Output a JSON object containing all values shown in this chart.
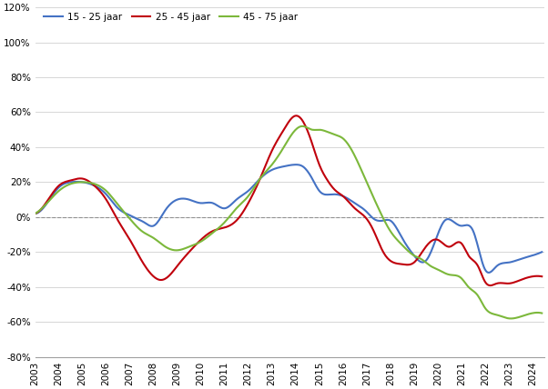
{
  "legend_labels": [
    "15 - 25 jaar",
    "25 - 45 jaar",
    "45 - 75 jaar"
  ],
  "line_colors": [
    "#4472C4",
    "#C0000C",
    "#7CB83B"
  ],
  "background_color": "#FFFFFF",
  "ylim": [
    -0.8,
    1.2
  ],
  "yticks": [
    -0.8,
    -0.6,
    -0.4,
    -0.2,
    0.0,
    0.2,
    0.4,
    0.6,
    0.8,
    1.0,
    1.2
  ],
  "xtick_years": [
    2003,
    2004,
    2005,
    2006,
    2007,
    2008,
    2009,
    2010,
    2011,
    2012,
    2013,
    2014,
    2015,
    2016,
    2017,
    2018,
    2019,
    2020,
    2021,
    2022,
    2023,
    2024
  ],
  "ctrl_x_blue": [
    2003.0,
    2003.5,
    2004.0,
    2004.5,
    2005.0,
    2005.5,
    2006.0,
    2006.5,
    2007.0,
    2007.3,
    2007.6,
    2008.0,
    2008.5,
    2009.0,
    2009.5,
    2010.0,
    2010.5,
    2011.0,
    2011.5,
    2012.0,
    2012.5,
    2013.0,
    2013.5,
    2014.0,
    2014.3,
    2014.7,
    2015.0,
    2015.5,
    2016.0,
    2016.5,
    2017.0,
    2017.3,
    2017.7,
    2018.0,
    2018.5,
    2019.0,
    2019.5,
    2020.0,
    2020.3,
    2020.7,
    2021.0,
    2021.5,
    2022.0,
    2022.5,
    2023.0,
    2023.5,
    2024.0,
    2024.4
  ],
  "ctrl_y_blue": [
    0.02,
    0.08,
    0.17,
    0.2,
    0.2,
    0.18,
    0.13,
    0.05,
    0.01,
    -0.01,
    -0.03,
    -0.05,
    0.04,
    0.1,
    0.1,
    0.08,
    0.08,
    0.05,
    0.1,
    0.15,
    0.22,
    0.27,
    0.29,
    0.3,
    0.29,
    0.22,
    0.15,
    0.13,
    0.12,
    0.08,
    0.03,
    -0.01,
    -0.02,
    -0.02,
    -0.12,
    -0.22,
    -0.25,
    -0.1,
    -0.02,
    -0.03,
    -0.05,
    -0.08,
    -0.3,
    -0.28,
    -0.26,
    -0.24,
    -0.22,
    -0.2
  ],
  "ctrl_x_red": [
    2003.0,
    2003.5,
    2004.0,
    2004.5,
    2005.0,
    2005.5,
    2006.0,
    2006.5,
    2007.0,
    2007.5,
    2008.0,
    2008.3,
    2008.7,
    2009.0,
    2009.5,
    2010.0,
    2010.5,
    2011.0,
    2011.5,
    2012.0,
    2012.5,
    2013.0,
    2013.5,
    2014.0,
    2014.3,
    2014.7,
    2015.0,
    2015.3,
    2015.7,
    2016.0,
    2016.5,
    2017.0,
    2017.3,
    2017.7,
    2018.0,
    2018.5,
    2019.0,
    2019.5,
    2020.0,
    2020.5,
    2021.0,
    2021.3,
    2021.7,
    2022.0,
    2022.5,
    2023.0,
    2023.5,
    2024.0,
    2024.4
  ],
  "ctrl_y_red": [
    0.02,
    0.09,
    0.18,
    0.21,
    0.22,
    0.18,
    0.1,
    -0.02,
    -0.13,
    -0.25,
    -0.34,
    -0.36,
    -0.33,
    -0.28,
    -0.2,
    -0.13,
    -0.08,
    -0.06,
    -0.02,
    0.08,
    0.22,
    0.38,
    0.5,
    0.58,
    0.55,
    0.42,
    0.3,
    0.22,
    0.15,
    0.12,
    0.05,
    -0.01,
    -0.08,
    -0.2,
    -0.25,
    -0.27,
    -0.26,
    -0.17,
    -0.13,
    -0.17,
    -0.15,
    -0.22,
    -0.28,
    -0.37,
    -0.38,
    -0.38,
    -0.36,
    -0.34,
    -0.34
  ],
  "ctrl_x_green": [
    2003.0,
    2003.5,
    2004.0,
    2004.5,
    2005.0,
    2005.5,
    2006.0,
    2006.5,
    2007.0,
    2007.5,
    2008.0,
    2008.5,
    2009.0,
    2009.5,
    2010.0,
    2010.5,
    2011.0,
    2011.5,
    2012.0,
    2012.5,
    2013.0,
    2013.5,
    2014.0,
    2014.3,
    2014.7,
    2015.0,
    2015.3,
    2015.7,
    2016.0,
    2016.5,
    2017.0,
    2017.5,
    2018.0,
    2018.5,
    2019.0,
    2019.3,
    2019.7,
    2020.0,
    2020.5,
    2021.0,
    2021.3,
    2021.7,
    2022.0,
    2022.5,
    2023.0,
    2023.5,
    2024.0,
    2024.4
  ],
  "ctrl_y_green": [
    0.02,
    0.08,
    0.15,
    0.19,
    0.2,
    0.19,
    0.15,
    0.07,
    -0.01,
    -0.08,
    -0.12,
    -0.17,
    -0.19,
    -0.17,
    -0.14,
    -0.09,
    -0.03,
    0.05,
    0.12,
    0.22,
    0.3,
    0.4,
    0.5,
    0.52,
    0.5,
    0.5,
    0.49,
    0.47,
    0.45,
    0.35,
    0.2,
    0.05,
    -0.08,
    -0.16,
    -0.22,
    -0.24,
    -0.28,
    -0.3,
    -0.33,
    -0.35,
    -0.4,
    -0.45,
    -0.52,
    -0.56,
    -0.58,
    -0.57,
    -0.55,
    -0.55
  ]
}
